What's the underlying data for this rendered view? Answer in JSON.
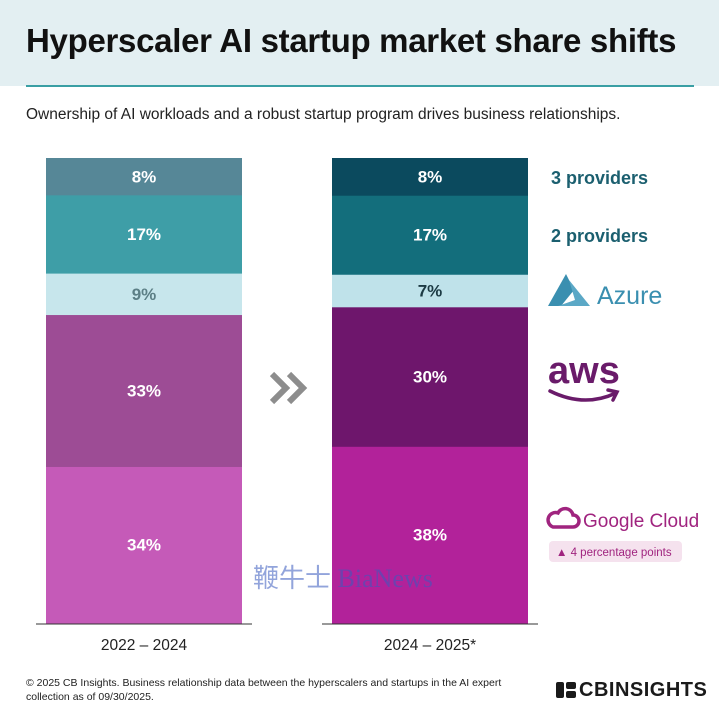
{
  "title": "Hyperscaler AI startup market share shifts",
  "subtitle": "Ownership of AI workloads and a robust startup program drives business relationships.",
  "chart_data": {
    "type": "bar",
    "stacked": true,
    "normalized_percent": true,
    "categories": [
      "2022 – 2024",
      "2024 – 2025*"
    ],
    "series": [
      {
        "name": "Google Cloud",
        "values": [
          34,
          38
        ],
        "colors": [
          "#c55ab8",
          "#b2229a"
        ]
      },
      {
        "name": "aws",
        "values": [
          33,
          30
        ],
        "colors": [
          "#9d4c95",
          "#6e166c"
        ]
      },
      {
        "name": "Azure",
        "values": [
          9,
          7
        ],
        "colors": [
          "#c7e6ec",
          "#bfe2ea"
        ]
      },
      {
        "name": "2 providers",
        "values": [
          17,
          17
        ],
        "colors": [
          "#3e9ea7",
          "#136e7c"
        ]
      },
      {
        "name": "3 providers",
        "values": [
          8,
          8
        ],
        "colors": [
          "#568797",
          "#0b4a5e"
        ]
      }
    ],
    "annotation": "▲ 4 percentage points"
  },
  "legend": {
    "three_providers": "3 providers",
    "two_providers": "2 providers",
    "azure": "Azure",
    "aws": "aws",
    "google_cloud": "Google Cloud",
    "badge": "▲ 4 percentage points"
  },
  "colors": {
    "teal_dark": "#0b4a5e",
    "teal": "#136e7c",
    "legend_text": "#1b5f6f",
    "accent_rule": "#3a9fa4",
    "google_magenta": "#b2229a"
  },
  "watermark": "鞭牛士 BiaNews",
  "footnote": "© 2025 CB Insights. Business relationship data between the hyperscalers and startups in the AI expert collection as of 09/30/2025.",
  "brand": "CBINSIGHTS"
}
